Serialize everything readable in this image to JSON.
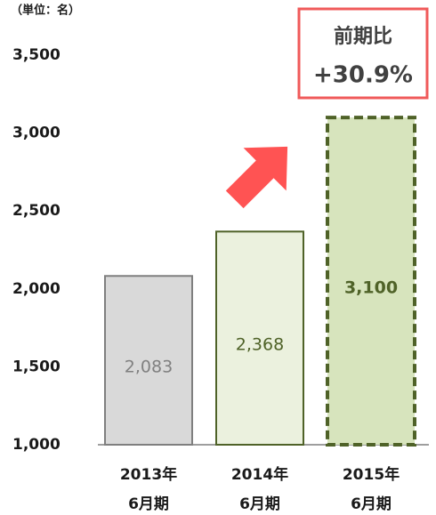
{
  "chart_data": {
    "type": "bar",
    "unit_label": "（単位：名）",
    "categories": [
      "2013年\n6月期",
      "2014年\n6月期",
      "2015年\n6月期"
    ],
    "values": [
      2083,
      2368,
      3100
    ],
    "value_labels": [
      "2,083",
      "2,368",
      "3,100"
    ],
    "colors": [
      "#d9d9d9",
      "#ebf1de",
      "#d7e4bd"
    ],
    "ylim": [
      1000,
      3500
    ],
    "yticks": [
      {
        "value": 1000,
        "label": "1,000"
      },
      {
        "value": 1500,
        "label": "1,500"
      },
      {
        "value": 2000,
        "label": "2,000"
      },
      {
        "value": 2500,
        "label": "2,500"
      },
      {
        "value": 3000,
        "label": "3,000"
      },
      {
        "value": 3500,
        "label": "3,500"
      }
    ],
    "annotation": {
      "title": "前期比",
      "text": "+30.9%"
    }
  }
}
